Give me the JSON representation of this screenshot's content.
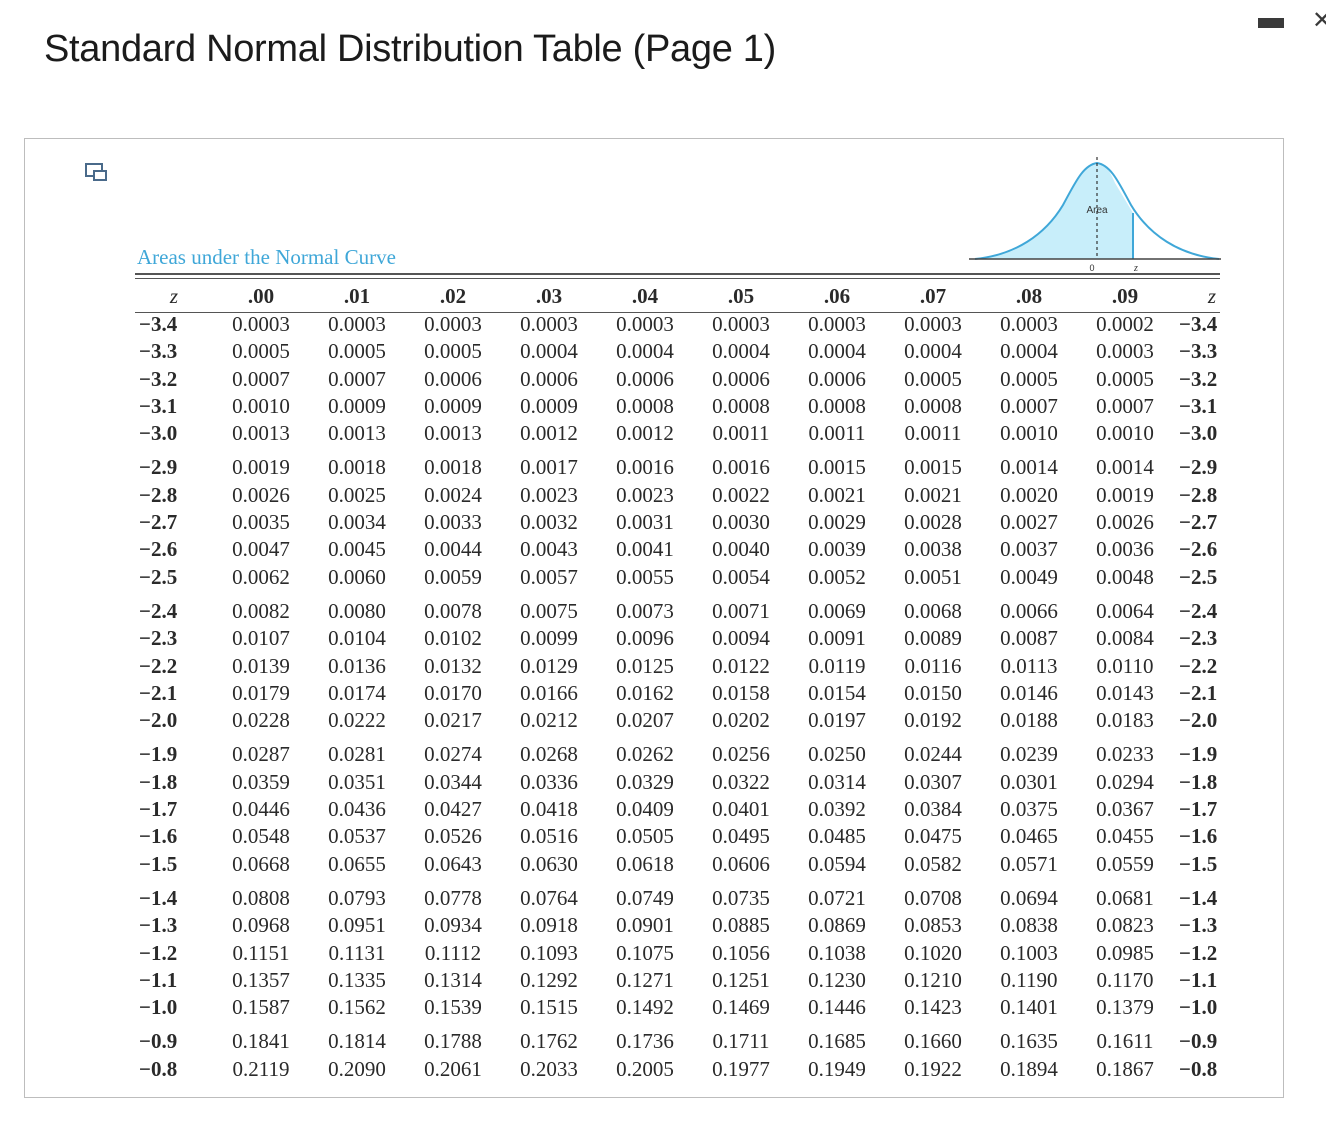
{
  "page_title": "Standard Normal Distribution Table (Page 1)",
  "figure": {
    "caption": "Areas under the Normal Curve",
    "curve_labels": {
      "area": "Area",
      "zero": "0",
      "z": "z"
    }
  },
  "table": {
    "z_header": "z",
    "columns": [
      ".00",
      ".01",
      ".02",
      ".03",
      ".04",
      ".05",
      ".06",
      ".07",
      ".08",
      ".09"
    ],
    "rows": [
      {
        "z": "−3.4",
        "v": [
          "0.0003",
          "0.0003",
          "0.0003",
          "0.0003",
          "0.0003",
          "0.0003",
          "0.0003",
          "0.0003",
          "0.0003",
          "0.0002"
        ]
      },
      {
        "z": "−3.3",
        "v": [
          "0.0005",
          "0.0005",
          "0.0005",
          "0.0004",
          "0.0004",
          "0.0004",
          "0.0004",
          "0.0004",
          "0.0004",
          "0.0003"
        ]
      },
      {
        "z": "−3.2",
        "v": [
          "0.0007",
          "0.0007",
          "0.0006",
          "0.0006",
          "0.0006",
          "0.0006",
          "0.0006",
          "0.0005",
          "0.0005",
          "0.0005"
        ]
      },
      {
        "z": "−3.1",
        "v": [
          "0.0010",
          "0.0009",
          "0.0009",
          "0.0009",
          "0.0008",
          "0.0008",
          "0.0008",
          "0.0008",
          "0.0007",
          "0.0007"
        ]
      },
      {
        "z": "−3.0",
        "v": [
          "0.0013",
          "0.0013",
          "0.0013",
          "0.0012",
          "0.0012",
          "0.0011",
          "0.0011",
          "0.0011",
          "0.0010",
          "0.0010"
        ]
      },
      {
        "z": "−2.9",
        "v": [
          "0.0019",
          "0.0018",
          "0.0018",
          "0.0017",
          "0.0016",
          "0.0016",
          "0.0015",
          "0.0015",
          "0.0014",
          "0.0014"
        ]
      },
      {
        "z": "−2.8",
        "v": [
          "0.0026",
          "0.0025",
          "0.0024",
          "0.0023",
          "0.0023",
          "0.0022",
          "0.0021",
          "0.0021",
          "0.0020",
          "0.0019"
        ]
      },
      {
        "z": "−2.7",
        "v": [
          "0.0035",
          "0.0034",
          "0.0033",
          "0.0032",
          "0.0031",
          "0.0030",
          "0.0029",
          "0.0028",
          "0.0027",
          "0.0026"
        ]
      },
      {
        "z": "−2.6",
        "v": [
          "0.0047",
          "0.0045",
          "0.0044",
          "0.0043",
          "0.0041",
          "0.0040",
          "0.0039",
          "0.0038",
          "0.0037",
          "0.0036"
        ]
      },
      {
        "z": "−2.5",
        "v": [
          "0.0062",
          "0.0060",
          "0.0059",
          "0.0057",
          "0.0055",
          "0.0054",
          "0.0052",
          "0.0051",
          "0.0049",
          "0.0048"
        ]
      },
      {
        "z": "−2.4",
        "v": [
          "0.0082",
          "0.0080",
          "0.0078",
          "0.0075",
          "0.0073",
          "0.0071",
          "0.0069",
          "0.0068",
          "0.0066",
          "0.0064"
        ]
      },
      {
        "z": "−2.3",
        "v": [
          "0.0107",
          "0.0104",
          "0.0102",
          "0.0099",
          "0.0096",
          "0.0094",
          "0.0091",
          "0.0089",
          "0.0087",
          "0.0084"
        ]
      },
      {
        "z": "−2.2",
        "v": [
          "0.0139",
          "0.0136",
          "0.0132",
          "0.0129",
          "0.0125",
          "0.0122",
          "0.0119",
          "0.0116",
          "0.0113",
          "0.0110"
        ]
      },
      {
        "z": "−2.1",
        "v": [
          "0.0179",
          "0.0174",
          "0.0170",
          "0.0166",
          "0.0162",
          "0.0158",
          "0.0154",
          "0.0150",
          "0.0146",
          "0.0143"
        ]
      },
      {
        "z": "−2.0",
        "v": [
          "0.0228",
          "0.0222",
          "0.0217",
          "0.0212",
          "0.0207",
          "0.0202",
          "0.0197",
          "0.0192",
          "0.0188",
          "0.0183"
        ]
      },
      {
        "z": "−1.9",
        "v": [
          "0.0287",
          "0.0281",
          "0.0274",
          "0.0268",
          "0.0262",
          "0.0256",
          "0.0250",
          "0.0244",
          "0.0239",
          "0.0233"
        ]
      },
      {
        "z": "−1.8",
        "v": [
          "0.0359",
          "0.0351",
          "0.0344",
          "0.0336",
          "0.0329",
          "0.0322",
          "0.0314",
          "0.0307",
          "0.0301",
          "0.0294"
        ]
      },
      {
        "z": "−1.7",
        "v": [
          "0.0446",
          "0.0436",
          "0.0427",
          "0.0418",
          "0.0409",
          "0.0401",
          "0.0392",
          "0.0384",
          "0.0375",
          "0.0367"
        ]
      },
      {
        "z": "−1.6",
        "v": [
          "0.0548",
          "0.0537",
          "0.0526",
          "0.0516",
          "0.0505",
          "0.0495",
          "0.0485",
          "0.0475",
          "0.0465",
          "0.0455"
        ]
      },
      {
        "z": "−1.5",
        "v": [
          "0.0668",
          "0.0655",
          "0.0643",
          "0.0630",
          "0.0618",
          "0.0606",
          "0.0594",
          "0.0582",
          "0.0571",
          "0.0559"
        ]
      },
      {
        "z": "−1.4",
        "v": [
          "0.0808",
          "0.0793",
          "0.0778",
          "0.0764",
          "0.0749",
          "0.0735",
          "0.0721",
          "0.0708",
          "0.0694",
          "0.0681"
        ]
      },
      {
        "z": "−1.3",
        "v": [
          "0.0968",
          "0.0951",
          "0.0934",
          "0.0918",
          "0.0901",
          "0.0885",
          "0.0869",
          "0.0853",
          "0.0838",
          "0.0823"
        ]
      },
      {
        "z": "−1.2",
        "v": [
          "0.1151",
          "0.1131",
          "0.1112",
          "0.1093",
          "0.1075",
          "0.1056",
          "0.1038",
          "0.1020",
          "0.1003",
          "0.0985"
        ]
      },
      {
        "z": "−1.1",
        "v": [
          "0.1357",
          "0.1335",
          "0.1314",
          "0.1292",
          "0.1271",
          "0.1251",
          "0.1230",
          "0.1210",
          "0.1190",
          "0.1170"
        ]
      },
      {
        "z": "−1.0",
        "v": [
          "0.1587",
          "0.1562",
          "0.1539",
          "0.1515",
          "0.1492",
          "0.1469",
          "0.1446",
          "0.1423",
          "0.1401",
          "0.1379"
        ]
      },
      {
        "z": "−0.9",
        "v": [
          "0.1841",
          "0.1814",
          "0.1788",
          "0.1762",
          "0.1736",
          "0.1711",
          "0.1685",
          "0.1660",
          "0.1635",
          "0.1611"
        ]
      },
      {
        "z": "−0.8",
        "v": [
          "0.2119",
          "0.2090",
          "0.2061",
          "0.2033",
          "0.2005",
          "0.1977",
          "0.1949",
          "0.1922",
          "0.1894",
          "0.1867"
        ]
      }
    ]
  },
  "colors": {
    "caption": "#3fa7d8",
    "curve_fill": "#c8eefa",
    "curve_stroke": "#3fa7d8"
  }
}
